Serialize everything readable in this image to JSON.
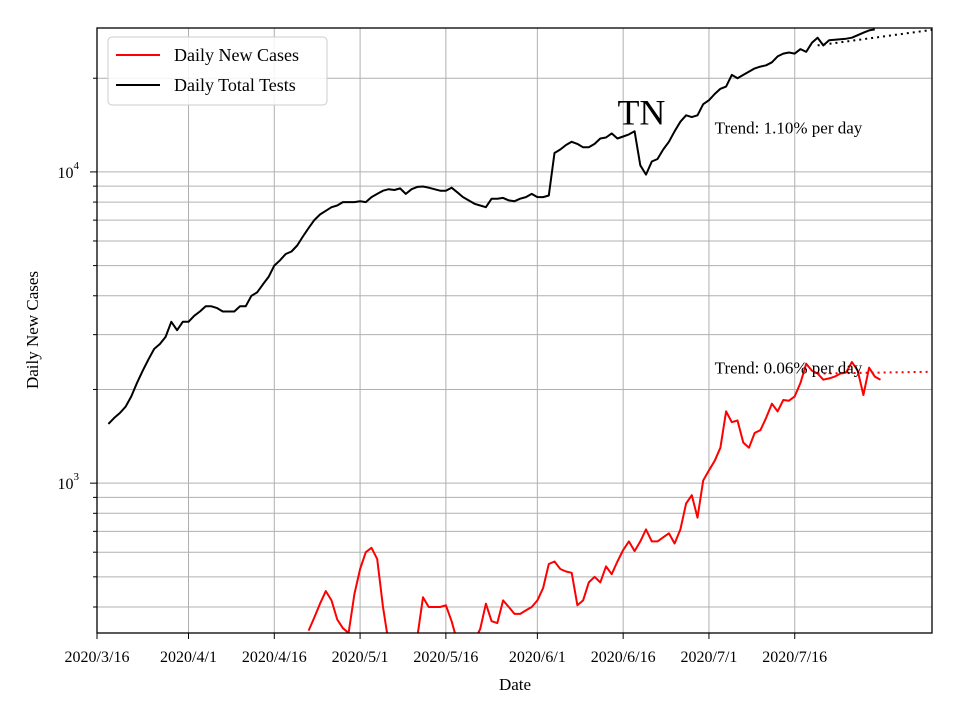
{
  "chart_data": {
    "type": "line",
    "title": "",
    "xlabel": "Date",
    "ylabel": "Daily New Cases",
    "yscale": "log",
    "ylim": [
      330,
      29000
    ],
    "xlim": [
      "2020-03-16",
      "2020-08-09"
    ],
    "grid": true,
    "legend_position": "top-left",
    "x_ticks": [
      "2020/3/16",
      "2020/4/1",
      "2020/4/16",
      "2020/5/1",
      "2020/5/16",
      "2020/6/1",
      "2020/6/16",
      "2020/7/1",
      "2020/7/16"
    ],
    "y_ticks": [
      {
        "value": 1000,
        "base": "10",
        "exp": "3"
      },
      {
        "value": 10000,
        "base": "10",
        "exp": "4"
      }
    ],
    "series": [
      {
        "name": "Daily New Cases",
        "color": "#ff0000",
        "start_date": "2020-04-22",
        "values": [
          336,
          370,
          410,
          450,
          420,
          365,
          342,
          330,
          440,
          530,
          600,
          620,
          570,
          400,
          305,
          300,
          300,
          300,
          300,
          320,
          430,
          400,
          400,
          400,
          405,
          360,
          310,
          322,
          328,
          312,
          340,
          410,
          360,
          355,
          420,
          400,
          380,
          380,
          390,
          400,
          420,
          460,
          550,
          560,
          530,
          520,
          515,
          405,
          420,
          480,
          500,
          480,
          540,
          510,
          560,
          610,
          650,
          605,
          650,
          710,
          650,
          650,
          670,
          690,
          640,
          710,
          860,
          915,
          775,
          1020,
          1100,
          1180,
          1300,
          1700,
          1570,
          1590,
          1350,
          1300,
          1450,
          1480,
          1620,
          1800,
          1700,
          1850,
          1840,
          1900,
          2100,
          2420,
          2300,
          2250,
          2150,
          2170,
          2200,
          2250,
          2270,
          2450,
          2300,
          1920,
          2350,
          2200,
          2150
        ]
      },
      {
        "name": "Daily Total Tests",
        "color": "#000000",
        "start_date": "2020-03-18",
        "values": [
          1550,
          1620,
          1680,
          1760,
          1900,
          2100,
          2300,
          2500,
          2700,
          2800,
          2950,
          3300,
          3100,
          3300,
          3300,
          3450,
          3560,
          3700,
          3700,
          3650,
          3560,
          3560,
          3560,
          3700,
          3700,
          4000,
          4100,
          4350,
          4600,
          5000,
          5200,
          5450,
          5550,
          5800,
          6200,
          6600,
          7000,
          7300,
          7500,
          7700,
          7800,
          8000,
          8000,
          8000,
          8050,
          8000,
          8300,
          8500,
          8700,
          8800,
          8750,
          8850,
          8500,
          8800,
          8950,
          8980,
          8900,
          8800,
          8700,
          8700,
          8900,
          8600,
          8300,
          8100,
          7900,
          7800,
          7700,
          8200,
          8200,
          8250,
          8100,
          8050,
          8200,
          8300,
          8500,
          8300,
          8300,
          8400,
          11500,
          11800,
          12200,
          12500,
          12300,
          12000,
          12000,
          12300,
          12800,
          12900,
          13300,
          12800,
          13000,
          13200,
          13500,
          10500,
          9800,
          10800,
          11000,
          11800,
          12500,
          13500,
          14500,
          15200,
          15000,
          15200,
          16500,
          17000,
          17800,
          18500,
          18800,
          20500,
          20000,
          20500,
          21000,
          21500,
          21800,
          22000,
          22500,
          23500,
          24000,
          24200,
          24000,
          24800,
          24300,
          26000,
          27000,
          25500,
          26500,
          26600,
          26700,
          26800,
          27000,
          27500,
          28000,
          28500,
          28700
        ]
      }
    ],
    "trend_lines": [
      {
        "series": "Daily New Cases",
        "color": "#ff0000",
        "style": "dotted",
        "date_range": [
          "2020-07-20",
          "2020-08-09"
        ],
        "values": [
          2250,
          2280
        ]
      },
      {
        "series": "Daily Total Tests",
        "color": "#000000",
        "style": "dotted",
        "date_range": [
          "2020-07-20",
          "2020-08-09"
        ],
        "values": [
          25500,
          28600
        ]
      }
    ],
    "annotations": [
      {
        "text": "TN",
        "style": "large",
        "date": "2020-06-15",
        "value": 14200
      },
      {
        "text": "Trend: 1.10% per day",
        "date": "2020-07-02",
        "value": 13300
      },
      {
        "text": "Trend: 0.06% per day",
        "date": "2020-07-02",
        "value": 2250
      }
    ]
  }
}
